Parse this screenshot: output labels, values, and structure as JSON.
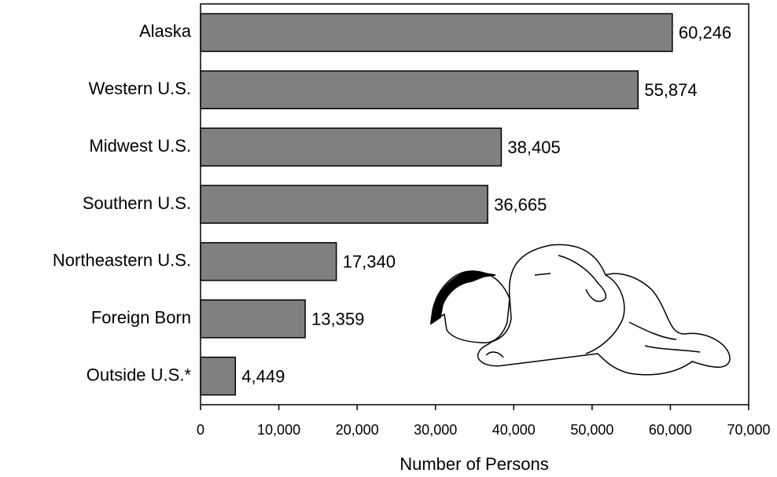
{
  "chart_data": {
    "type": "hbar",
    "categories": [
      "Alaska",
      "Western U.S.",
      "Midwest U.S.",
      "Southern U.S.",
      "Northeastern U.S.",
      "Foreign Born",
      "Outside U.S.*"
    ],
    "values": [
      60246,
      55874,
      38405,
      36665,
      17340,
      13359,
      4449
    ],
    "value_labels": [
      "60,246",
      "55,874",
      "38,405",
      "36,665",
      "17,340",
      "13,359",
      "4,449"
    ],
    "color": "#808080",
    "xlabel": "Number of Persons",
    "xlim": [
      0,
      70000
    ],
    "xticks": [
      0,
      {
        "value": 10000,
        "label": "10,000"
      },
      {
        "value": 20000,
        "label": "20,000"
      },
      {
        "value": 30000,
        "label": "30,000"
      },
      {
        "value": 40000,
        "label": "40,000"
      },
      {
        "value": 50000,
        "label": "50,000"
      },
      {
        "value": 60000,
        "label": "60,000"
      },
      {
        "value": 70000,
        "label": "70,000"
      }
    ]
  }
}
